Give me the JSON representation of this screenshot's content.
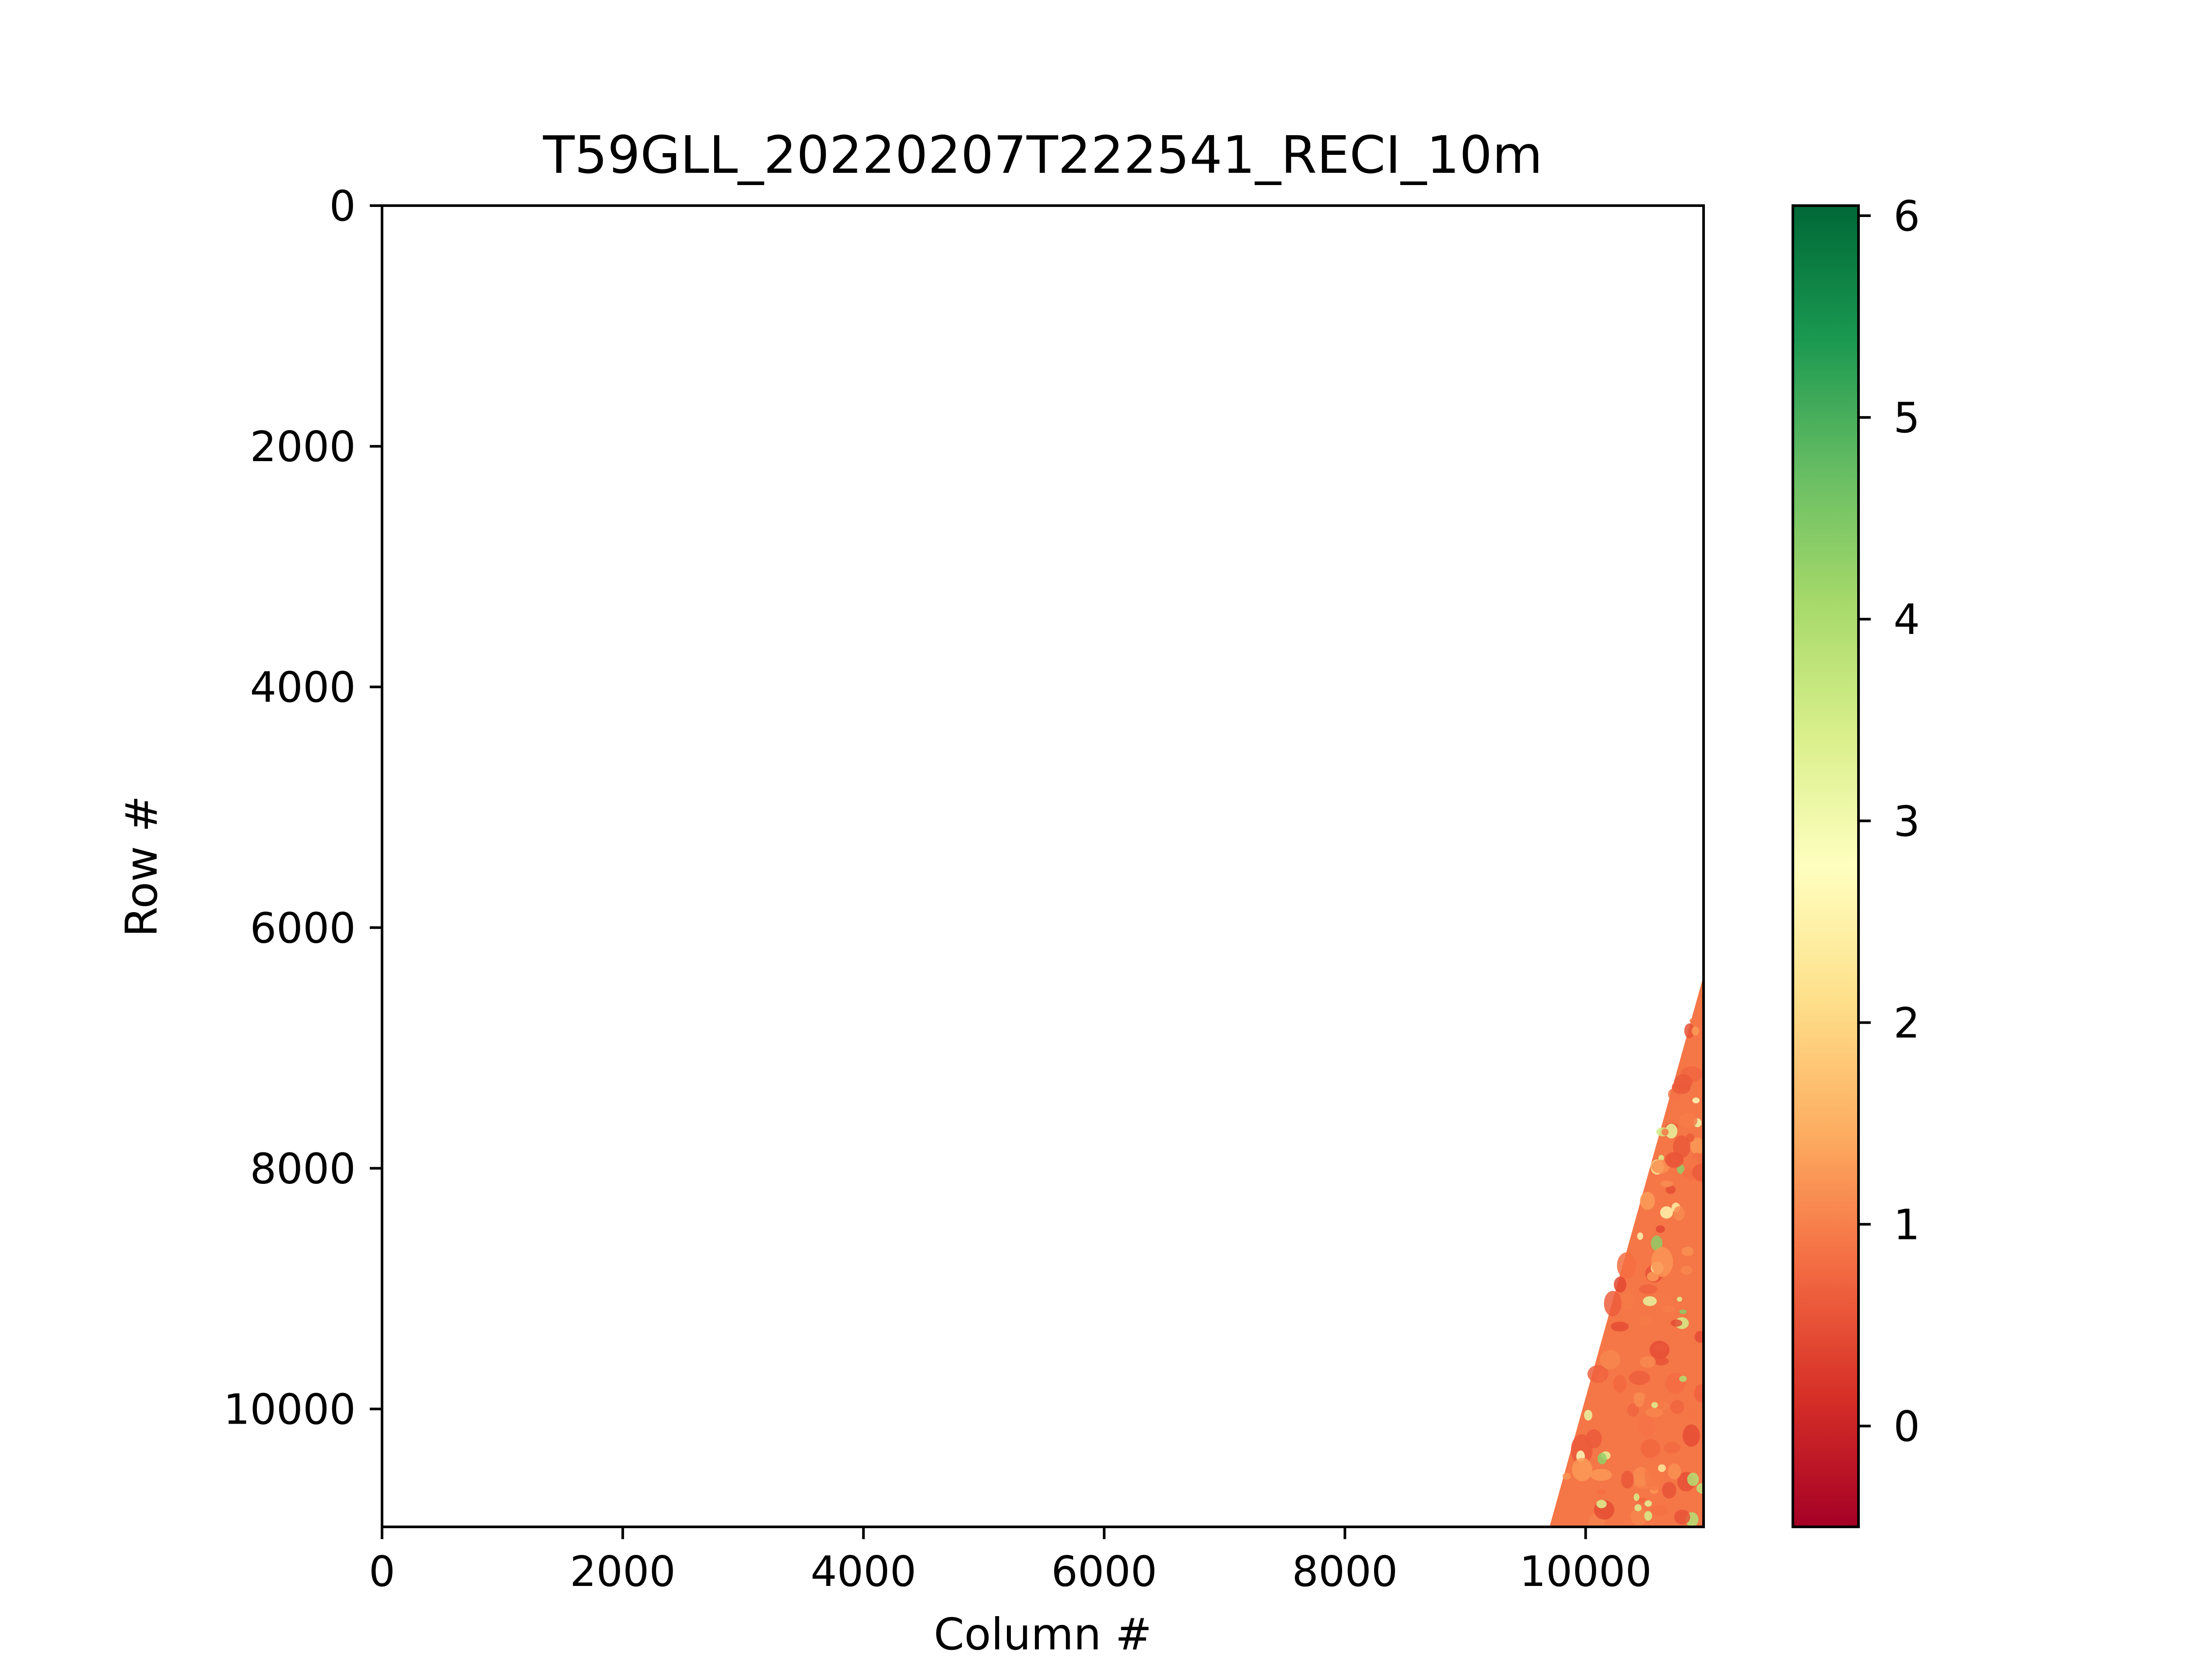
{
  "chart_data": {
    "type": "heatmap",
    "title": "T59GLL_20220207T222541_RECI_10m",
    "xlabel": "Column #",
    "ylabel": "Row #",
    "x_range": [
      0,
      10980
    ],
    "y_range": [
      10980,
      0
    ],
    "x_ticks": [
      0,
      2000,
      4000,
      6000,
      8000,
      10000
    ],
    "y_ticks": [
      0,
      2000,
      4000,
      6000,
      8000,
      10000
    ],
    "grid": false,
    "colormap": "RdYlGn",
    "colorbar": {
      "vmin": -0.5,
      "vmax": 6.05,
      "ticks": [
        0,
        1,
        2,
        3,
        4,
        5,
        6
      ],
      "stops": [
        "#a50026",
        "#d73027",
        "#f46d43",
        "#fdae61",
        "#fee08b",
        "#ffffbf",
        "#d9ef8b",
        "#a6d96a",
        "#66bd63",
        "#1a9850",
        "#006837"
      ]
    },
    "data_region": {
      "description_values": "valid pixels only in lower-right triangle; remainder no-data",
      "polygon_columns_rows": [
        [
          10980,
          6400
        ],
        [
          10980,
          10980
        ],
        [
          9700,
          10980
        ]
      ],
      "typical_value": 0.9,
      "value_range": [
        0.3,
        4.5
      ]
    }
  }
}
